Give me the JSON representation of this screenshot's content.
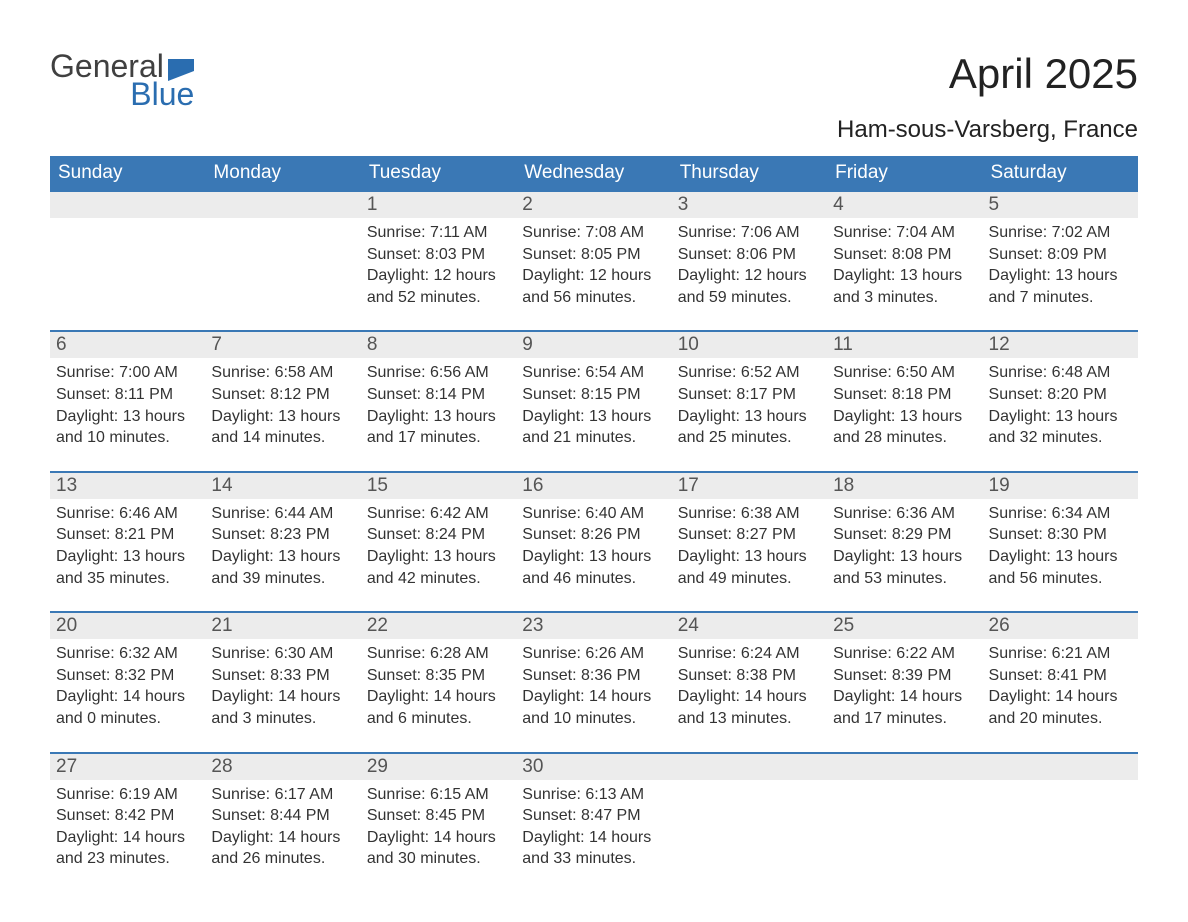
{
  "branding": {
    "logo_text_1": "General",
    "logo_text_2": "Blue",
    "logo_color_1": "#404040",
    "logo_color_2": "#2a6db0",
    "flag_color": "#2a6db0"
  },
  "header": {
    "month_title": "April 2025",
    "location": "Ham-sous-Varsberg, France"
  },
  "styling": {
    "header_bg": "#3a78b5",
    "header_text": "#ffffff",
    "daynum_bg": "#ececec",
    "daynum_border": "#3a78b5",
    "body_text": "#333333",
    "page_bg": "#ffffff",
    "month_title_fontsize": 42,
    "location_fontsize": 24,
    "dayheader_fontsize": 19,
    "daynum_fontsize": 19,
    "cell_fontsize": 16
  },
  "day_headers": [
    "Sunday",
    "Monday",
    "Tuesday",
    "Wednesday",
    "Thursday",
    "Friday",
    "Saturday"
  ],
  "weeks": [
    [
      null,
      null,
      {
        "n": "1",
        "sunrise": "7:11 AM",
        "sunset": "8:03 PM",
        "daylight": "12 hours and 52 minutes."
      },
      {
        "n": "2",
        "sunrise": "7:08 AM",
        "sunset": "8:05 PM",
        "daylight": "12 hours and 56 minutes."
      },
      {
        "n": "3",
        "sunrise": "7:06 AM",
        "sunset": "8:06 PM",
        "daylight": "12 hours and 59 minutes."
      },
      {
        "n": "4",
        "sunrise": "7:04 AM",
        "sunset": "8:08 PM",
        "daylight": "13 hours and 3 minutes."
      },
      {
        "n": "5",
        "sunrise": "7:02 AM",
        "sunset": "8:09 PM",
        "daylight": "13 hours and 7 minutes."
      }
    ],
    [
      {
        "n": "6",
        "sunrise": "7:00 AM",
        "sunset": "8:11 PM",
        "daylight": "13 hours and 10 minutes."
      },
      {
        "n": "7",
        "sunrise": "6:58 AM",
        "sunset": "8:12 PM",
        "daylight": "13 hours and 14 minutes."
      },
      {
        "n": "8",
        "sunrise": "6:56 AM",
        "sunset": "8:14 PM",
        "daylight": "13 hours and 17 minutes."
      },
      {
        "n": "9",
        "sunrise": "6:54 AM",
        "sunset": "8:15 PM",
        "daylight": "13 hours and 21 minutes."
      },
      {
        "n": "10",
        "sunrise": "6:52 AM",
        "sunset": "8:17 PM",
        "daylight": "13 hours and 25 minutes."
      },
      {
        "n": "11",
        "sunrise": "6:50 AM",
        "sunset": "8:18 PM",
        "daylight": "13 hours and 28 minutes."
      },
      {
        "n": "12",
        "sunrise": "6:48 AM",
        "sunset": "8:20 PM",
        "daylight": "13 hours and 32 minutes."
      }
    ],
    [
      {
        "n": "13",
        "sunrise": "6:46 AM",
        "sunset": "8:21 PM",
        "daylight": "13 hours and 35 minutes."
      },
      {
        "n": "14",
        "sunrise": "6:44 AM",
        "sunset": "8:23 PM",
        "daylight": "13 hours and 39 minutes."
      },
      {
        "n": "15",
        "sunrise": "6:42 AM",
        "sunset": "8:24 PM",
        "daylight": "13 hours and 42 minutes."
      },
      {
        "n": "16",
        "sunrise": "6:40 AM",
        "sunset": "8:26 PM",
        "daylight": "13 hours and 46 minutes."
      },
      {
        "n": "17",
        "sunrise": "6:38 AM",
        "sunset": "8:27 PM",
        "daylight": "13 hours and 49 minutes."
      },
      {
        "n": "18",
        "sunrise": "6:36 AM",
        "sunset": "8:29 PM",
        "daylight": "13 hours and 53 minutes."
      },
      {
        "n": "19",
        "sunrise": "6:34 AM",
        "sunset": "8:30 PM",
        "daylight": "13 hours and 56 minutes."
      }
    ],
    [
      {
        "n": "20",
        "sunrise": "6:32 AM",
        "sunset": "8:32 PM",
        "daylight": "14 hours and 0 minutes."
      },
      {
        "n": "21",
        "sunrise": "6:30 AM",
        "sunset": "8:33 PM",
        "daylight": "14 hours and 3 minutes."
      },
      {
        "n": "22",
        "sunrise": "6:28 AM",
        "sunset": "8:35 PM",
        "daylight": "14 hours and 6 minutes."
      },
      {
        "n": "23",
        "sunrise": "6:26 AM",
        "sunset": "8:36 PM",
        "daylight": "14 hours and 10 minutes."
      },
      {
        "n": "24",
        "sunrise": "6:24 AM",
        "sunset": "8:38 PM",
        "daylight": "14 hours and 13 minutes."
      },
      {
        "n": "25",
        "sunrise": "6:22 AM",
        "sunset": "8:39 PM",
        "daylight": "14 hours and 17 minutes."
      },
      {
        "n": "26",
        "sunrise": "6:21 AM",
        "sunset": "8:41 PM",
        "daylight": "14 hours and 20 minutes."
      }
    ],
    [
      {
        "n": "27",
        "sunrise": "6:19 AM",
        "sunset": "8:42 PM",
        "daylight": "14 hours and 23 minutes."
      },
      {
        "n": "28",
        "sunrise": "6:17 AM",
        "sunset": "8:44 PM",
        "daylight": "14 hours and 26 minutes."
      },
      {
        "n": "29",
        "sunrise": "6:15 AM",
        "sunset": "8:45 PM",
        "daylight": "14 hours and 30 minutes."
      },
      {
        "n": "30",
        "sunrise": "6:13 AM",
        "sunset": "8:47 PM",
        "daylight": "14 hours and 33 minutes."
      },
      null,
      null,
      null
    ]
  ],
  "labels": {
    "sunrise": "Sunrise: ",
    "sunset": "Sunset: ",
    "daylight": "Daylight: "
  }
}
